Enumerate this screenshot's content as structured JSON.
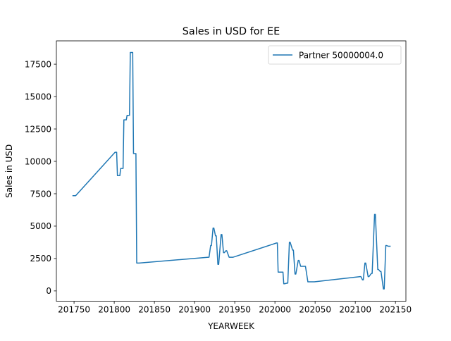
{
  "chart_data": {
    "type": "line",
    "title": "Sales in USD for EE",
    "xlabel": "YEARWEEK",
    "ylabel": "Sales in USD",
    "xlim": [
      201728,
      202163
    ],
    "ylim": [
      -800,
      19300
    ],
    "xticks": [
      201750,
      201800,
      201850,
      201900,
      201950,
      202000,
      202050,
      202100,
      202150
    ],
    "yticks": [
      0,
      2500,
      5000,
      7500,
      10000,
      12500,
      15000,
      17500
    ],
    "legend_position": "top-right",
    "grid": false,
    "series": [
      {
        "name": "Partner 50000004.0",
        "color": "#1f77b4",
        "x": [
          201748,
          201752,
          201801,
          201803,
          201804,
          201807,
          201808,
          201811,
          201812,
          201815,
          201816,
          201819,
          201820,
          201823,
          201824,
          201827,
          201828,
          201830,
          201831,
          201917,
          201918,
          201920,
          201921,
          201923,
          201924,
          201926,
          201927,
          201929,
          201930,
          201933,
          201934,
          201936,
          201937,
          201939,
          201940,
          201943,
          201944,
          201947,
          201948,
          202002,
          202003,
          202004,
          202005,
          202009,
          202010,
          202011,
          202012,
          202015,
          202016,
          202018,
          202019,
          202022,
          202023,
          202025,
          202026,
          202029,
          202030,
          202032,
          202033,
          202037,
          202038,
          202041,
          202042,
          202044,
          202045,
          202048,
          202049,
          202106,
          202107,
          202109,
          202110,
          202112,
          202113,
          202116,
          202117,
          202120,
          202121,
          202124,
          202125,
          202128,
          202129,
          202131,
          202132,
          202135,
          202136,
          202138,
          202139,
          202141,
          202142,
          202144
        ],
        "values": [
          7350,
          7350,
          10700,
          10700,
          8900,
          8900,
          9450,
          9450,
          13200,
          13200,
          13550,
          13550,
          18400,
          18400,
          10600,
          10600,
          2150,
          2150,
          2150,
          2600,
          2600,
          3500,
          3500,
          4850,
          4850,
          4250,
          4250,
          2050,
          2050,
          4350,
          4350,
          2950,
          2950,
          3100,
          3100,
          2600,
          2600,
          2600,
          2600,
          3700,
          3700,
          1450,
          1450,
          1450,
          1450,
          550,
          550,
          600,
          600,
          3750,
          3750,
          3150,
          3150,
          1300,
          1300,
          2350,
          2350,
          1900,
          1900,
          1900,
          1900,
          700,
          700,
          700,
          700,
          700,
          700,
          1100,
          1100,
          850,
          850,
          2150,
          2150,
          1100,
          1100,
          1350,
          1350,
          5900,
          5900,
          1650,
          1650,
          1500,
          1500,
          150,
          150,
          3500,
          3500,
          3450,
          3450,
          3450
        ]
      }
    ]
  }
}
